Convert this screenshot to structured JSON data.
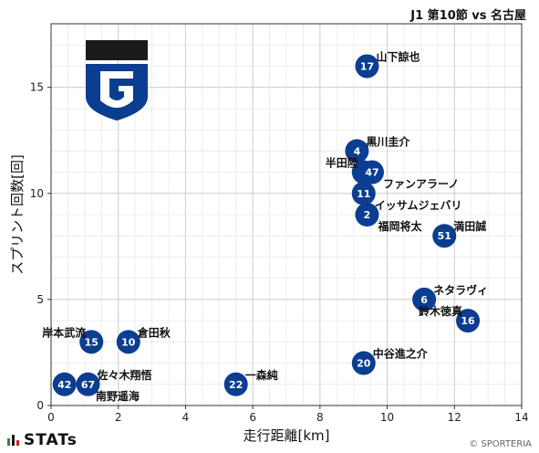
{
  "header": {
    "title": "J1 第10節 vs 名古屋"
  },
  "footer": {
    "brand": "STATs",
    "copyright": "© SPORTERIA"
  },
  "colors": {
    "marker": "#0b3d91",
    "gridMajor": "#cfcfcf",
    "gridMinor": "#ececec",
    "logoBlue": "#0b3d91",
    "logoDark": "#1b1b1b"
  },
  "icons": {
    "team_emblem": "gamba-shield-emblem"
  },
  "chart_data": {
    "type": "scatter",
    "title": "",
    "xlabel": "走行距離[km]",
    "ylabel": "スプリント回数[回]",
    "xlim": [
      0,
      14
    ],
    "ylim": [
      0,
      18
    ],
    "xticks": [
      0,
      2,
      4,
      6,
      8,
      10,
      12,
      14
    ],
    "yticks": [
      0,
      5,
      10,
      15
    ],
    "grid": true,
    "points": [
      {
        "number": "17",
        "name": "山下諒也",
        "x": 9.4,
        "y": 16,
        "label_pos": "ne"
      },
      {
        "number": "4",
        "name": "黒川圭介",
        "x": 9.1,
        "y": 12,
        "label_pos": "ne"
      },
      {
        "number": "8",
        "name": "半田陸",
        "x": 9.3,
        "y": 11,
        "label_pos": "nw"
      },
      {
        "number": "47",
        "name": "ファンアラーノ",
        "x": 9.55,
        "y": 11,
        "label_pos": "se"
      },
      {
        "number": "11",
        "name": "イッサムジェバリ",
        "x": 9.3,
        "y": 10,
        "label_pos": "se"
      },
      {
        "number": "2",
        "name": "福岡将太",
        "x": 9.4,
        "y": 9,
        "label_pos": "se"
      },
      {
        "number": "51",
        "name": "満田誠",
        "x": 11.7,
        "y": 8,
        "label_pos": "ne"
      },
      {
        "number": "6",
        "name": "ネタラヴィ",
        "x": 11.1,
        "y": 5,
        "label_pos": "ne"
      },
      {
        "number": "16",
        "name": "鈴木徳真",
        "x": 12.4,
        "y": 4,
        "label_pos": "nw"
      },
      {
        "number": "20",
        "name": "中谷進之介",
        "x": 9.3,
        "y": 2,
        "label_pos": "ne"
      },
      {
        "number": "15",
        "name": "岸本武流",
        "x": 1.2,
        "y": 3,
        "label_pos": "nw"
      },
      {
        "number": "10",
        "name": "倉田秋",
        "x": 2.3,
        "y": 3,
        "label_pos": "ne"
      },
      {
        "number": "42",
        "name": "",
        "x": 0.4,
        "y": 1,
        "label_pos": "none"
      },
      {
        "number": "67",
        "name": "佐々木翔悟",
        "x": 1.1,
        "y": 1,
        "label_pos": "ne"
      },
      {
        "number": "",
        "name": "南野遥海",
        "x": 1.0,
        "y": 1,
        "label_pos": "se"
      },
      {
        "number": "22",
        "name": "一森純",
        "x": 5.5,
        "y": 1,
        "label_pos": "ne"
      }
    ]
  }
}
